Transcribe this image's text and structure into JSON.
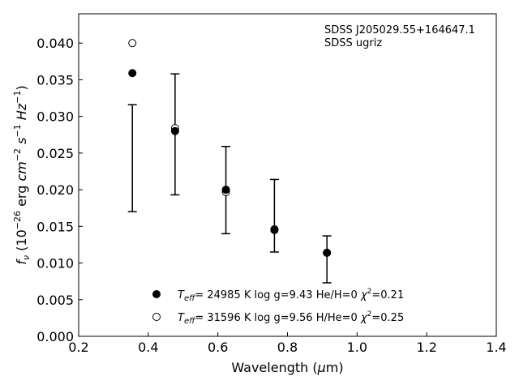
{
  "chart_data": {
    "type": "scatter",
    "title": "",
    "xlabel": "Wavelength (μm)",
    "ylabel": "fν (10⁻²⁶ erg cm⁻² s⁻¹ Hz⁻¹)",
    "xlim": [
      0.2,
      1.4
    ],
    "ylim": [
      0.0,
      0.044
    ],
    "x_ticks": [
      0.2,
      0.4,
      0.6,
      0.8,
      1.0,
      1.2,
      1.4
    ],
    "x_tick_labels": [
      "0.2",
      "0.4",
      "0.6",
      "0.8",
      "1.0",
      "1.2",
      "1.4"
    ],
    "y_ticks": [
      0.0,
      0.005,
      0.01,
      0.015,
      0.02,
      0.025,
      0.03,
      0.035,
      0.04
    ],
    "y_tick_labels": [
      "0.000",
      "0.005",
      "0.010",
      "0.015",
      "0.020",
      "0.025",
      "0.030",
      "0.035",
      "0.040"
    ],
    "grid": false,
    "legend_position": "bottom-center",
    "annotation": [
      "SDSS J205029.55+164647.1",
      "SDSS ugriz"
    ],
    "observed": {
      "x": [
        0.3543,
        0.477,
        0.6231,
        0.7625,
        0.9134
      ],
      "y_low": [
        0.017,
        0.0193,
        0.014,
        0.0115,
        0.0073
      ],
      "y_high": [
        0.0316,
        0.0358,
        0.0259,
        0.0214,
        0.0137
      ]
    },
    "series": [
      {
        "name": "T_eff= 24985 K  log g=9.43  He/H=0  χ²=0.21",
        "marker": "filled-circle",
        "x": [
          0.3543,
          0.477,
          0.6231,
          0.7625,
          0.9134
        ],
        "y": [
          0.0359,
          0.028,
          0.02,
          0.0145,
          0.0114
        ]
      },
      {
        "name": "T_eff= 31596 K  log g=9.56  H/He=0  χ²=0.25",
        "marker": "open-circle",
        "x": [
          0.3543,
          0.477,
          0.6231,
          0.7625,
          0.9134
        ],
        "y": [
          0.04,
          0.0284,
          0.0197,
          0.0146,
          0.0114
        ]
      }
    ],
    "legend": {
      "entries": [
        {
          "marker": "filled-circle",
          "teff": "24985 K",
          "logg": "log g=9.43",
          "comp": "He/H=0",
          "chi2": "=0.21"
        },
        {
          "marker": "open-circle",
          "teff": "31596 K",
          "logg": "log g=9.56",
          "comp": "H/He=0",
          "chi2": "=0.25"
        }
      ]
    },
    "colors": {
      "marker": "#000000",
      "axis": "#000000",
      "background": "#ffffff"
    }
  }
}
